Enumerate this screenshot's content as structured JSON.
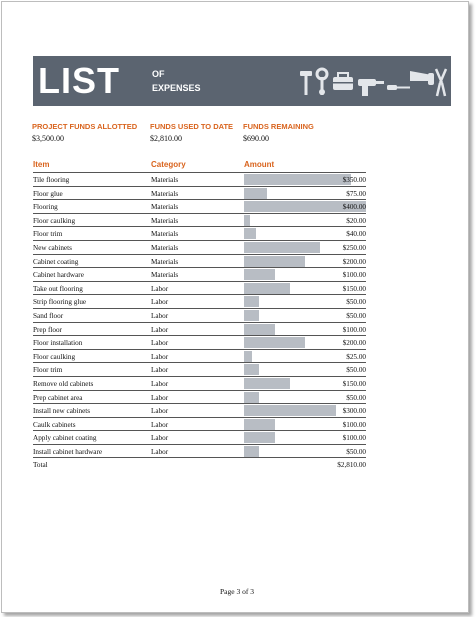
{
  "banner": {
    "big_title": "LIST",
    "sub_line1": "OF",
    "sub_line2": "EXPENSES",
    "color": "#5b6470"
  },
  "summary": [
    {
      "label": "PROJECT FUNDS ALLOTTED",
      "value": "$3,500.00"
    },
    {
      "label": "FUNDS USED TO DATE",
      "value": "$2,810.00"
    },
    {
      "label": "FUNDS REMAINING",
      "value": "$690.00"
    }
  ],
  "table": {
    "headers": {
      "item": "Item",
      "category": "Category",
      "amount": "Amount"
    },
    "rows": [
      {
        "item": "Tile flooring",
        "category": "Materials",
        "amount": "$350.00",
        "value": 350
      },
      {
        "item": "Floor glue",
        "category": "Materials",
        "amount": "$75.00",
        "value": 75
      },
      {
        "item": "Flooring",
        "category": "Materials",
        "amount": "$400.00",
        "value": 400
      },
      {
        "item": "Floor caulking",
        "category": "Materials",
        "amount": "$20.00",
        "value": 20
      },
      {
        "item": "Floor trim",
        "category": "Materials",
        "amount": "$40.00",
        "value": 40
      },
      {
        "item": "New cabinets",
        "category": "Materials",
        "amount": "$250.00",
        "value": 250
      },
      {
        "item": "Cabinet coating",
        "category": "Materials",
        "amount": "$200.00",
        "value": 200
      },
      {
        "item": "Cabinet hardware",
        "category": "Materials",
        "amount": "$100.00",
        "value": 100
      },
      {
        "item": "Take out flooring",
        "category": "Labor",
        "amount": "$150.00",
        "value": 150
      },
      {
        "item": "Strip flooring glue",
        "category": "Labor",
        "amount": "$50.00",
        "value": 50
      },
      {
        "item": "Sand floor",
        "category": "Labor",
        "amount": "$50.00",
        "value": 50
      },
      {
        "item": "Prep floor",
        "category": "Labor",
        "amount": "$100.00",
        "value": 100
      },
      {
        "item": "Floor installation",
        "category": "Labor",
        "amount": "$200.00",
        "value": 200
      },
      {
        "item": "Floor caulking",
        "category": "Labor",
        "amount": "$25.00",
        "value": 25
      },
      {
        "item": "Floor trim",
        "category": "Labor",
        "amount": "$50.00",
        "value": 50
      },
      {
        "item": "Remove old cabinets",
        "category": "Labor",
        "amount": "$150.00",
        "value": 150
      },
      {
        "item": "Prep cabinet area",
        "category": "Labor",
        "amount": "$50.00",
        "value": 50
      },
      {
        "item": "Install new cabinets",
        "category": "Labor",
        "amount": "$300.00",
        "value": 300
      },
      {
        "item": "Caulk cabinets",
        "category": "Labor",
        "amount": "$100.00",
        "value": 100
      },
      {
        "item": "Apply cabinet coating",
        "category": "Labor",
        "amount": "$100.00",
        "value": 100
      },
      {
        "item": "Install cabinet hardware",
        "category": "Labor",
        "amount": "$50.00",
        "value": 50
      }
    ],
    "bar_max": 400,
    "bar_color": "#b8bdc4",
    "total": {
      "label": "Total",
      "amount": "$2,810.00"
    }
  },
  "footer": {
    "page": "Page 3 of 3"
  },
  "icons": [
    "hammer-icon",
    "wrench-icon",
    "toolbox-icon",
    "drill-icon",
    "screwdriver-icon",
    "saw-icon",
    "pliers-icon"
  ]
}
